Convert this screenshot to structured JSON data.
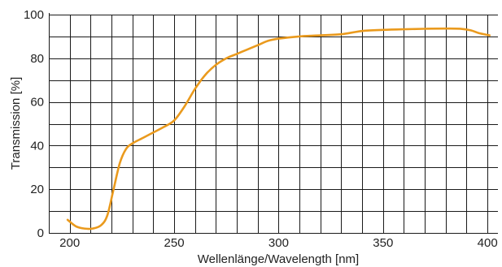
{
  "chart_data": {
    "type": "line",
    "title": "",
    "xlabel": "Wellenlänge/Wavelength [nm]",
    "ylabel": "Transmission [%]",
    "xlim": [
      190,
      405
    ],
    "ylim": [
      0,
      100
    ],
    "x_ticks": [
      200,
      250,
      300,
      350,
      400
    ],
    "y_ticks": [
      0,
      20,
      40,
      60,
      80,
      100
    ],
    "grid": true,
    "grid_x_step": 10,
    "grid_y_step": 10,
    "series": [
      {
        "color": "#EA9A1D",
        "x": [
          199,
          203,
          207,
          211,
          215,
          218,
          221,
          224,
          227,
          230,
          235,
          240,
          245,
          250,
          255,
          260,
          265,
          270,
          275,
          280,
          285,
          290,
          295,
          300,
          310,
          320,
          330,
          340,
          350,
          360,
          370,
          380,
          387,
          392,
          396,
          401
        ],
        "y": [
          6,
          3,
          2,
          2,
          3.5,
          8,
          20,
          32,
          38.5,
          41,
          43.5,
          46,
          48.5,
          51.5,
          58,
          66,
          72.5,
          77,
          80,
          82,
          84,
          86,
          88,
          89,
          90,
          90.5,
          91,
          92.5,
          93,
          93.3,
          93.5,
          93.6,
          93.5,
          92.8,
          91.5,
          90.5
        ]
      }
    ]
  }
}
